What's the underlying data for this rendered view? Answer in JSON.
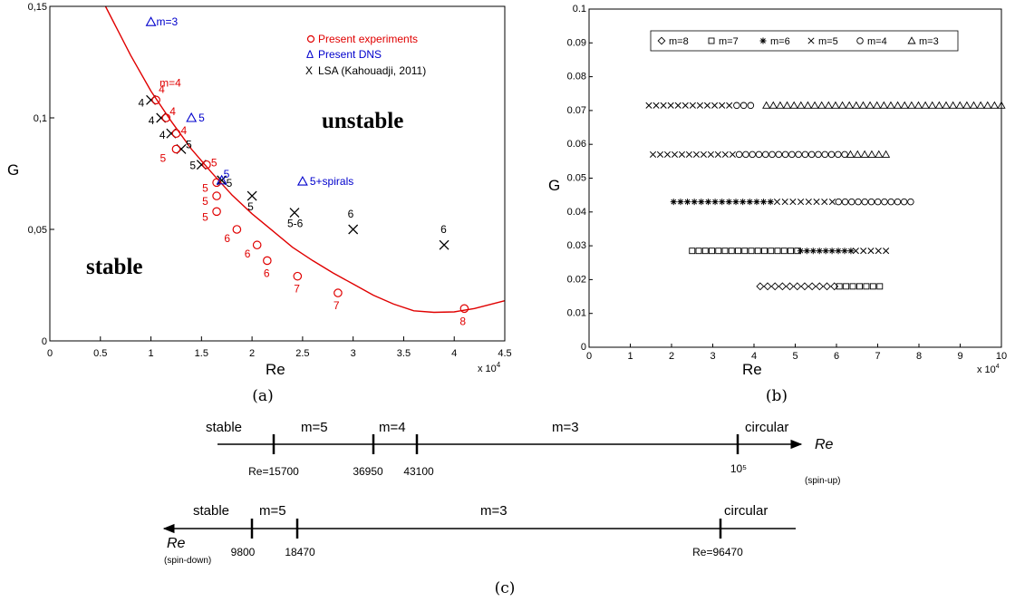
{
  "chart_data": [
    {
      "type": "scatter",
      "panel_label": "(a)",
      "xlabel": "Re",
      "ylabel": "G",
      "x_multiplier": "x 10^4",
      "xlim": [
        0,
        45000
      ],
      "ylim": [
        0,
        0.15
      ],
      "xticks": [
        "0",
        "0.5",
        "1",
        "1.5",
        "2",
        "2.5",
        "3",
        "3.5",
        "4",
        "4.5"
      ],
      "yticks": [
        "0",
        "0,05",
        "0,1",
        "0,15"
      ],
      "grid": false,
      "legend_position": "top-right",
      "legend": [
        {
          "symbol": "o",
          "label": "Present experiments",
          "color": "#e00000"
        },
        {
          "symbol": "Δ",
          "label": "Present DNS",
          "color": "#0000cc"
        },
        {
          "symbol": "X",
          "label": "LSA (Kahouadji, 2011)",
          "color": "#000000"
        }
      ],
      "region_labels": [
        "unstable",
        "stable"
      ],
      "curve": {
        "name": "stability boundary",
        "color": "#e00000",
        "x": [
          5500,
          8000,
          10000,
          12000,
          14000,
          16000,
          18000,
          20000,
          22000,
          24000,
          26000,
          28000,
          30000,
          32000,
          34000,
          36000,
          38000,
          40000,
          42000,
          45000
        ],
        "y": [
          0.15,
          0.128,
          0.112,
          0.0985,
          0.086,
          0.0755,
          0.0655,
          0.057,
          0.0495,
          0.042,
          0.036,
          0.0305,
          0.0255,
          0.0205,
          0.0165,
          0.0135,
          0.0128,
          0.013,
          0.0145,
          0.018
        ]
      },
      "experiments": {
        "color": "#e00000",
        "points": [
          {
            "x": 10500,
            "y": 0.108,
            "label": "4"
          },
          {
            "x": 11500,
            "y": 0.1,
            "label": "4"
          },
          {
            "x": 12500,
            "y": 0.093,
            "label": "4"
          },
          {
            "x": 12500,
            "y": 0.086,
            "label": "5"
          },
          {
            "x": 15500,
            "y": 0.079,
            "label": "5"
          },
          {
            "x": 16500,
            "y": 0.071,
            "label": "5"
          },
          {
            "x": 16500,
            "y": 0.065,
            "label": "5"
          },
          {
            "x": 16500,
            "y": 0.058,
            "label": "5"
          },
          {
            "x": 18500,
            "y": 0.05,
            "label": "6"
          },
          {
            "x": 20500,
            "y": 0.043,
            "label": "6"
          },
          {
            "x": 21500,
            "y": 0.036,
            "label": "6"
          },
          {
            "x": 24500,
            "y": 0.029,
            "label": "7"
          },
          {
            "x": 28500,
            "y": 0.0215,
            "label": "7"
          },
          {
            "x": 41000,
            "y": 0.0145,
            "label": "8"
          }
        ]
      },
      "dns": {
        "color": "#0000cc",
        "points": [
          {
            "x": 10000,
            "y": 0.143,
            "label": "m=3"
          },
          {
            "x": 14000,
            "y": 0.1,
            "label": "5"
          },
          {
            "x": 17000,
            "y": 0.072,
            "label": "5"
          },
          {
            "x": 25000,
            "y": 0.0715,
            "label": "5+spirals"
          }
        ]
      },
      "lsa": {
        "color": "#000000",
        "points": [
          {
            "x": 10000,
            "y": 0.108,
            "label": "4"
          },
          {
            "x": 11000,
            "y": 0.1,
            "label": "4"
          },
          {
            "x": 12000,
            "y": 0.093,
            "label": "4"
          },
          {
            "x": 13000,
            "y": 0.086,
            "label": "5"
          },
          {
            "x": 15000,
            "y": 0.079,
            "label": "5"
          },
          {
            "x": 17000,
            "y": 0.072,
            "label": "5"
          },
          {
            "x": 20000,
            "y": 0.065,
            "label": "5"
          },
          {
            "x": 24200,
            "y": 0.0575,
            "label": "5-6"
          },
          {
            "x": 30000,
            "y": 0.05,
            "label": "6"
          },
          {
            "x": 39000,
            "y": 0.043,
            "label": "6"
          }
        ]
      },
      "annotation_m4": "m=4"
    },
    {
      "type": "scatter",
      "panel_label": "(b)",
      "xlabel": "Re",
      "ylabel": "G",
      "x_multiplier": "x 10^4",
      "xlim": [
        0,
        100000
      ],
      "ylim": [
        0,
        0.1
      ],
      "xticks": [
        "0",
        "1",
        "2",
        "3",
        "4",
        "5",
        "6",
        "7",
        "8",
        "9",
        "10"
      ],
      "yticks": [
        "0",
        "0.01",
        "0.02",
        "0.03",
        "0.04",
        "0.05",
        "0.06",
        "0.07",
        "0.08",
        "0.09",
        "0.1"
      ],
      "grid": false,
      "legend_position": "top",
      "legend": [
        {
          "symbol": "diamond",
          "label": "m=8"
        },
        {
          "symbol": "square",
          "label": "m=7"
        },
        {
          "symbol": "star",
          "label": "m=6"
        },
        {
          "symbol": "x",
          "label": "m=5"
        },
        {
          "symbol": "circle",
          "label": "m=4"
        },
        {
          "symbol": "triangle",
          "label": "m=3"
        }
      ],
      "rows": [
        {
          "y": 0.0715,
          "segments": [
            {
              "symbol": "x",
              "x_start": 14500,
              "x_end": 34000,
              "count": 12
            },
            {
              "symbol": "circle",
              "x_start": 35800,
              "x_end": 39200,
              "count": 3
            },
            {
              "symbol": "triangle",
              "x_start": 43000,
              "x_end": 100000,
              "count": 35
            }
          ]
        },
        {
          "y": 0.057,
          "segments": [
            {
              "symbol": "x",
              "x_start": 15500,
              "x_end": 34800,
              "count": 12
            },
            {
              "symbol": "circle",
              "x_start": 36400,
              "x_end": 62000,
              "count": 17
            },
            {
              "symbol": "triangle",
              "x_start": 63400,
              "x_end": 72000,
              "count": 6
            }
          ]
        },
        {
          "y": 0.043,
          "segments": [
            {
              "symbol": "star",
              "x_start": 20500,
              "x_end": 44000,
              "count": 15
            },
            {
              "symbol": "x",
              "x_start": 45600,
              "x_end": 59000,
              "count": 8
            },
            {
              "symbol": "circle",
              "x_start": 60500,
              "x_end": 78000,
              "count": 12
            }
          ]
        },
        {
          "y": 0.0285,
          "segments": [
            {
              "symbol": "square",
              "x_start": 25000,
              "x_end": 50500,
              "count": 17
            },
            {
              "symbol": "star",
              "x_start": 51300,
              "x_end": 63500,
              "count": 9
            },
            {
              "symbol": "x",
              "x_start": 64700,
              "x_end": 72000,
              "count": 5
            }
          ]
        },
        {
          "y": 0.018,
          "segments": [
            {
              "symbol": "diamond",
              "x_start": 41500,
              "x_end": 59500,
              "count": 11
            },
            {
              "symbol": "square",
              "x_start": 60700,
              "x_end": 70500,
              "count": 7
            }
          ]
        }
      ]
    },
    {
      "type": "timeline",
      "panel_label": "(c)",
      "spin_up": {
        "axis_label": "Re",
        "direction_label": "(spin-up)",
        "regimes": [
          "stable",
          "m=5",
          "m=4",
          "m=3",
          "circular"
        ],
        "ticks": [
          "Re=15700",
          "36950",
          "43100",
          "10⁵"
        ]
      },
      "spin_down": {
        "axis_label": "Re",
        "direction_label": "(spin-down)",
        "regimes": [
          "stable",
          "m=5",
          "m=3",
          "circular"
        ],
        "ticks": [
          "9800",
          "18470",
          "Re=96470"
        ]
      }
    }
  ]
}
